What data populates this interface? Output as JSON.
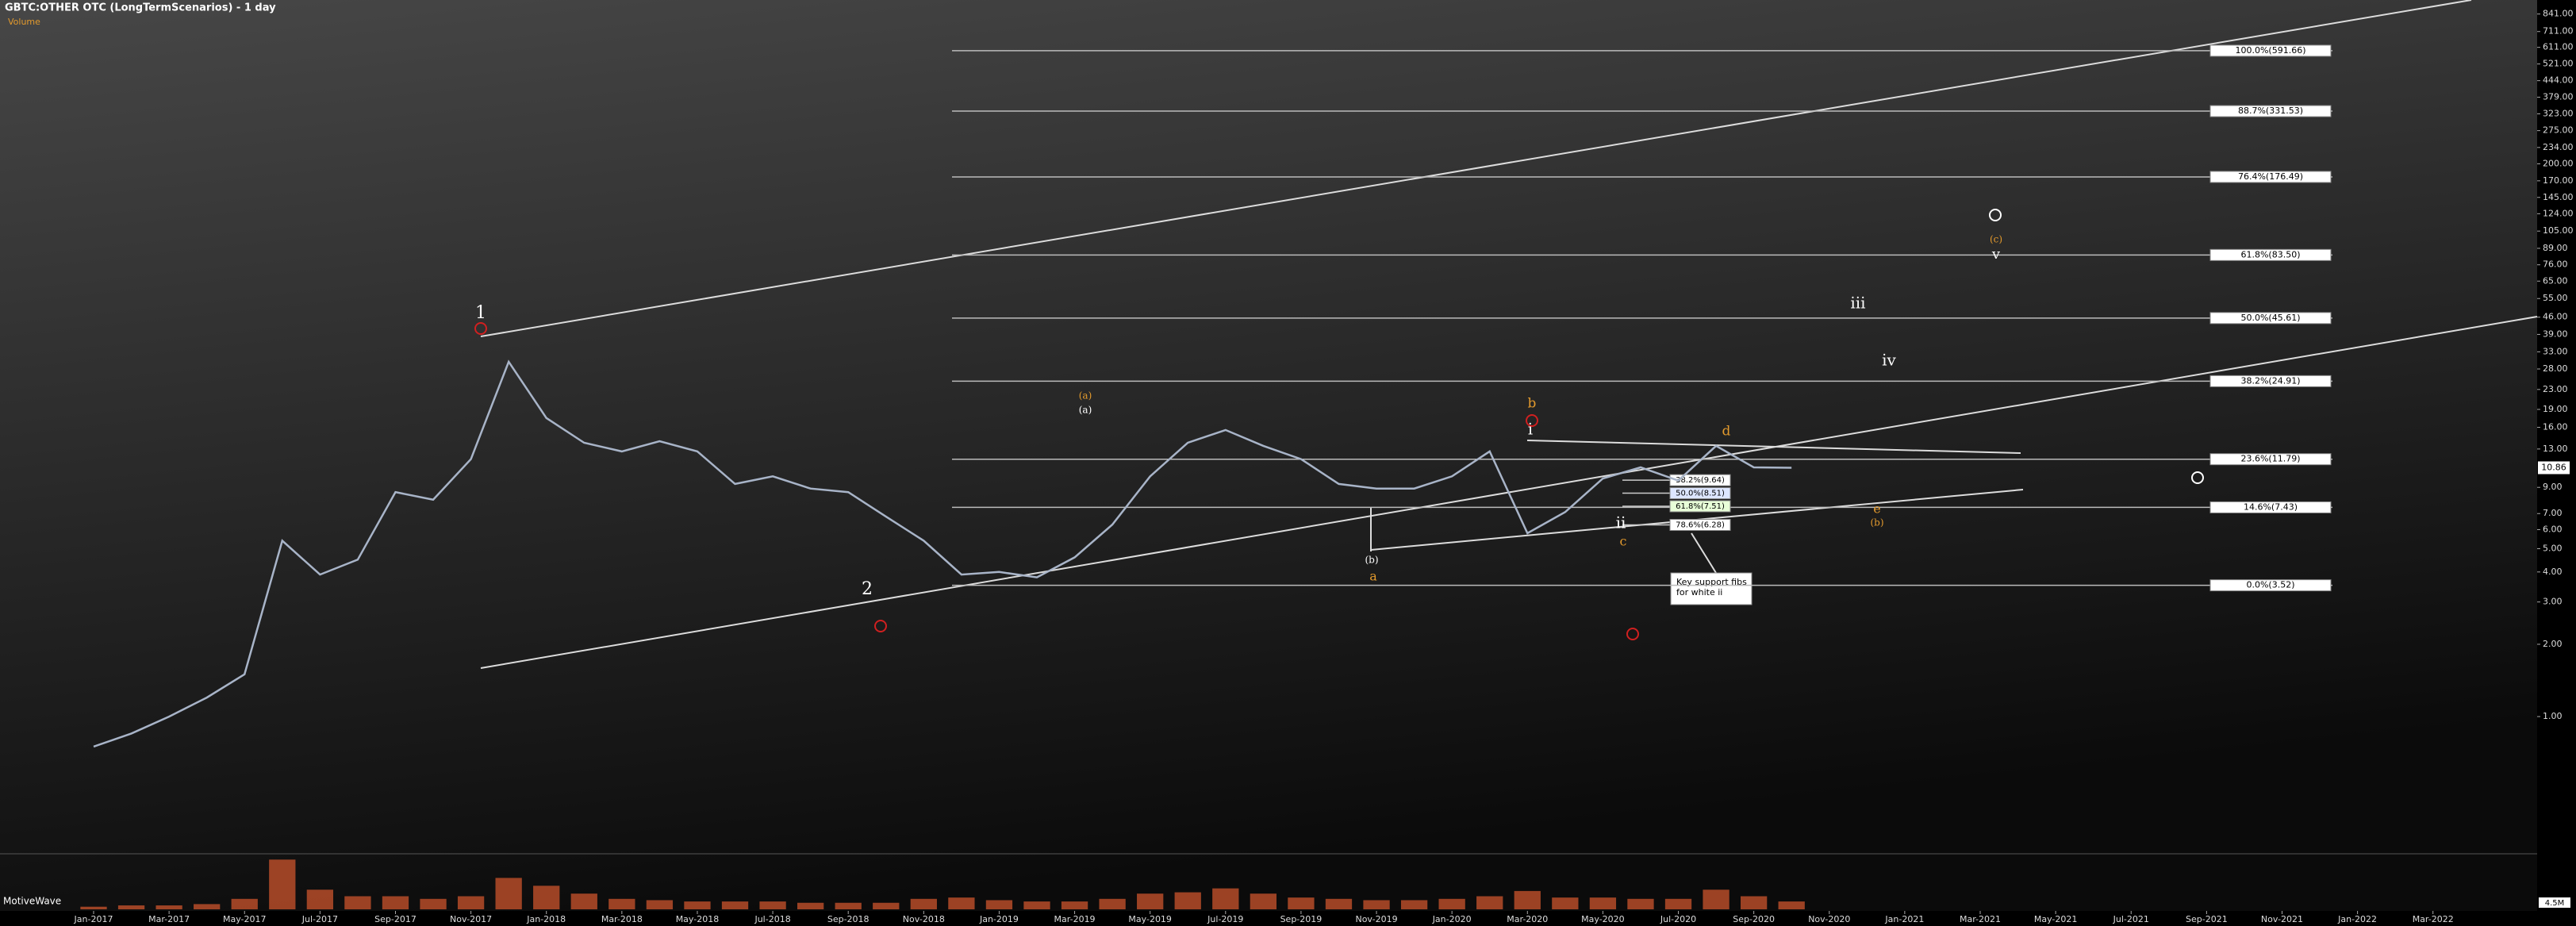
{
  "chart_data": {
    "type": "line",
    "title": "GBTC:OTHER OTC (LongTermScenarios) - 1 day",
    "subtitle": "Volume",
    "watermark": "MotiveWave",
    "log_scale": true,
    "categories": [
      "Jan-2017",
      null,
      "Mar-2017",
      null,
      "May-2017",
      null,
      "Jul-2017",
      null,
      "Sep-2017",
      null,
      "Nov-2017",
      null,
      "Jan-2018",
      null,
      "Mar-2018",
      null,
      "May-2018",
      null,
      "Jul-2018",
      null,
      "Sep-2018",
      null,
      "Nov-2018",
      null,
      "Jan-2019",
      null,
      "Mar-2019",
      null,
      "May-2019",
      null,
      "Jul-2019",
      null,
      "Sep-2019",
      null,
      "Nov-2019",
      null,
      "Jan-2020",
      null,
      "Mar-2020",
      null,
      "May-2020",
      null,
      "Jul-2020",
      null,
      "Sep-2020",
      null,
      "Nov-2020",
      null,
      "Jan-2021",
      null,
      "Mar-2021",
      null,
      "May-2021",
      null,
      "Jul-2021",
      null,
      "Sep-2021",
      null,
      "Nov-2021",
      null,
      "Jan-2022",
      null,
      "Mar-2022"
    ],
    "series": [
      {
        "name": "GBTC",
        "color": "#a8b4c8",
        "values": [
          0.75,
          0.85,
          1.0,
          1.2,
          1.5,
          5.4,
          3.9,
          4.5,
          8.6,
          8.0,
          11.8,
          30,
          17.5,
          13.8,
          12.7,
          14,
          12.7,
          9.3,
          10,
          8.9,
          8.6,
          6.8,
          5.4,
          3.9,
          4.0,
          3.8,
          4.6,
          6.3,
          10,
          13.8,
          15.6,
          13.4,
          11.8,
          9.3,
          8.9,
          8.9,
          10,
          12.7,
          5.8,
          7.1,
          9.8,
          10.9,
          9.6,
          13.4,
          10.9,
          10.86,
          null,
          null,
          null,
          null,
          null,
          null,
          null,
          null,
          null,
          null,
          null,
          null,
          null,
          null,
          null,
          null,
          null
        ]
      }
    ],
    "volume": {
      "color": "#c0502a",
      "vlim": [
        0,
        4
      ],
      "tag": "4.5M",
      "values": [
        0.2,
        0.3,
        0.3,
        0.4,
        0.8,
        3.8,
        1.5,
        1.0,
        1.0,
        0.8,
        1.0,
        2.4,
        1.8,
        1.2,
        0.8,
        0.7,
        0.6,
        0.6,
        0.6,
        0.5,
        0.5,
        0.5,
        0.8,
        0.9,
        0.7,
        0.6,
        0.6,
        0.8,
        1.2,
        1.3,
        1.6,
        1.2,
        0.9,
        0.8,
        0.7,
        0.7,
        0.8,
        1.0,
        1.4,
        0.9,
        0.9,
        0.8,
        0.8,
        1.5,
        1.0,
        0.6,
        null,
        null,
        null,
        null,
        null,
        null,
        null,
        null,
        null,
        null,
        null,
        null,
        null,
        null,
        null,
        null,
        null
      ]
    },
    "ylim": [
      0.16,
      962
    ],
    "yticks": [
      {
        "value": 841,
        "label": "841.00"
      },
      {
        "value": 711,
        "label": "711.00"
      },
      {
        "value": 611,
        "label": "611.00"
      },
      {
        "value": 521,
        "label": "521.00"
      },
      {
        "value": 444,
        "label": "444.00"
      },
      {
        "value": 379,
        "label": "379.00"
      },
      {
        "value": 323,
        "label": "323.00"
      },
      {
        "value": 275,
        "label": "275.00"
      },
      {
        "value": 234,
        "label": "234.00"
      },
      {
        "value": 200,
        "label": "200.00"
      },
      {
        "value": 170,
        "label": "170.00"
      },
      {
        "value": 145,
        "label": "145.00"
      },
      {
        "value": 124,
        "label": "124.00"
      },
      {
        "value": 105,
        "label": "105.00"
      },
      {
        "value": 89,
        "label": "89.00"
      },
      {
        "value": 76,
        "label": "76.00"
      },
      {
        "value": 65,
        "label": "65.00"
      },
      {
        "value": 55,
        "label": "55.00"
      },
      {
        "value": 46,
        "label": "46.00"
      },
      {
        "value": 39,
        "label": "39.00"
      },
      {
        "value": 33,
        "label": "33.00"
      },
      {
        "value": 28,
        "label": "28.00"
      },
      {
        "value": 23,
        "label": "23.00"
      },
      {
        "value": 19,
        "label": "19.00"
      },
      {
        "value": 16,
        "label": "16.00"
      },
      {
        "value": 13,
        "label": "13.00"
      },
      {
        "value": 9,
        "label": "9.00"
      },
      {
        "value": 7,
        "label": "7.00"
      },
      {
        "value": 6,
        "label": "6.00"
      },
      {
        "value": 5,
        "label": "5.00"
      },
      {
        "value": 4,
        "label": "4.00"
      },
      {
        "value": 3,
        "label": "3.00"
      },
      {
        "value": 2,
        "label": "2.00"
      },
      {
        "value": 1,
        "label": "1.00"
      }
    ],
    "last_price": 10.86,
    "fib_levels": [
      {
        "value": 591.66,
        "label": "100.0%(591.66)"
      },
      {
        "value": 331.53,
        "label": "88.7%(331.53)"
      },
      {
        "value": 176.49,
        "label": "76.4%(176.49)"
      },
      {
        "value": 83.5,
        "label": "61.8%(83.50)"
      },
      {
        "value": 45.61,
        "label": "50.0%(45.61)"
      },
      {
        "value": 24.91,
        "label": "38.2%(24.91)"
      },
      {
        "value": 11.79,
        "label": "23.6%(11.79)"
      },
      {
        "value": 7.43,
        "label": "14.6%(7.43)"
      },
      {
        "value": 3.52,
        "label": "0.0%(3.52)"
      }
    ],
    "support_fibs": [
      {
        "value": 9.64,
        "label": "38.2%(9.64)",
        "color": "#ffffff"
      },
      {
        "value": 8.51,
        "label": "50.0%(8.51)",
        "color": "#dde6ff"
      },
      {
        "value": 7.51,
        "label": "61.8%(7.51)",
        "color": "#e8ffd8"
      },
      {
        "value": 6.28,
        "label": "78.6%(6.28)",
        "color": "#ffffff"
      }
    ],
    "note": "Key support fibs for white ii",
    "wave_labels": [
      {
        "text": "1",
        "color": "#ffffff"
      },
      {
        "text": "2",
        "color": "#ffffff"
      },
      {
        "text": "(a)",
        "color": "#e39a2d"
      },
      {
        "text": "(a)",
        "color": "#ffffff"
      },
      {
        "text": "b",
        "color": "#e39a2d"
      },
      {
        "text": "i",
        "color": "#ffffff"
      },
      {
        "text": "ii",
        "color": "#ffffff"
      },
      {
        "text": "c",
        "color": "#e39a2d"
      },
      {
        "text": "(b)",
        "color": "#ffffff"
      },
      {
        "text": "a",
        "color": "#e39a2d"
      },
      {
        "text": "d",
        "color": "#e39a2d"
      },
      {
        "text": "iii",
        "color": "#ffffff"
      },
      {
        "text": "iv",
        "color": "#ffffff"
      },
      {
        "text": "v",
        "color": "#ffffff"
      },
      {
        "text": "(c)",
        "color": "#e39a2d"
      },
      {
        "text": "e",
        "color": "#e39a2d"
      },
      {
        "text": "(b)",
        "color": "#e39a2d"
      }
    ]
  }
}
